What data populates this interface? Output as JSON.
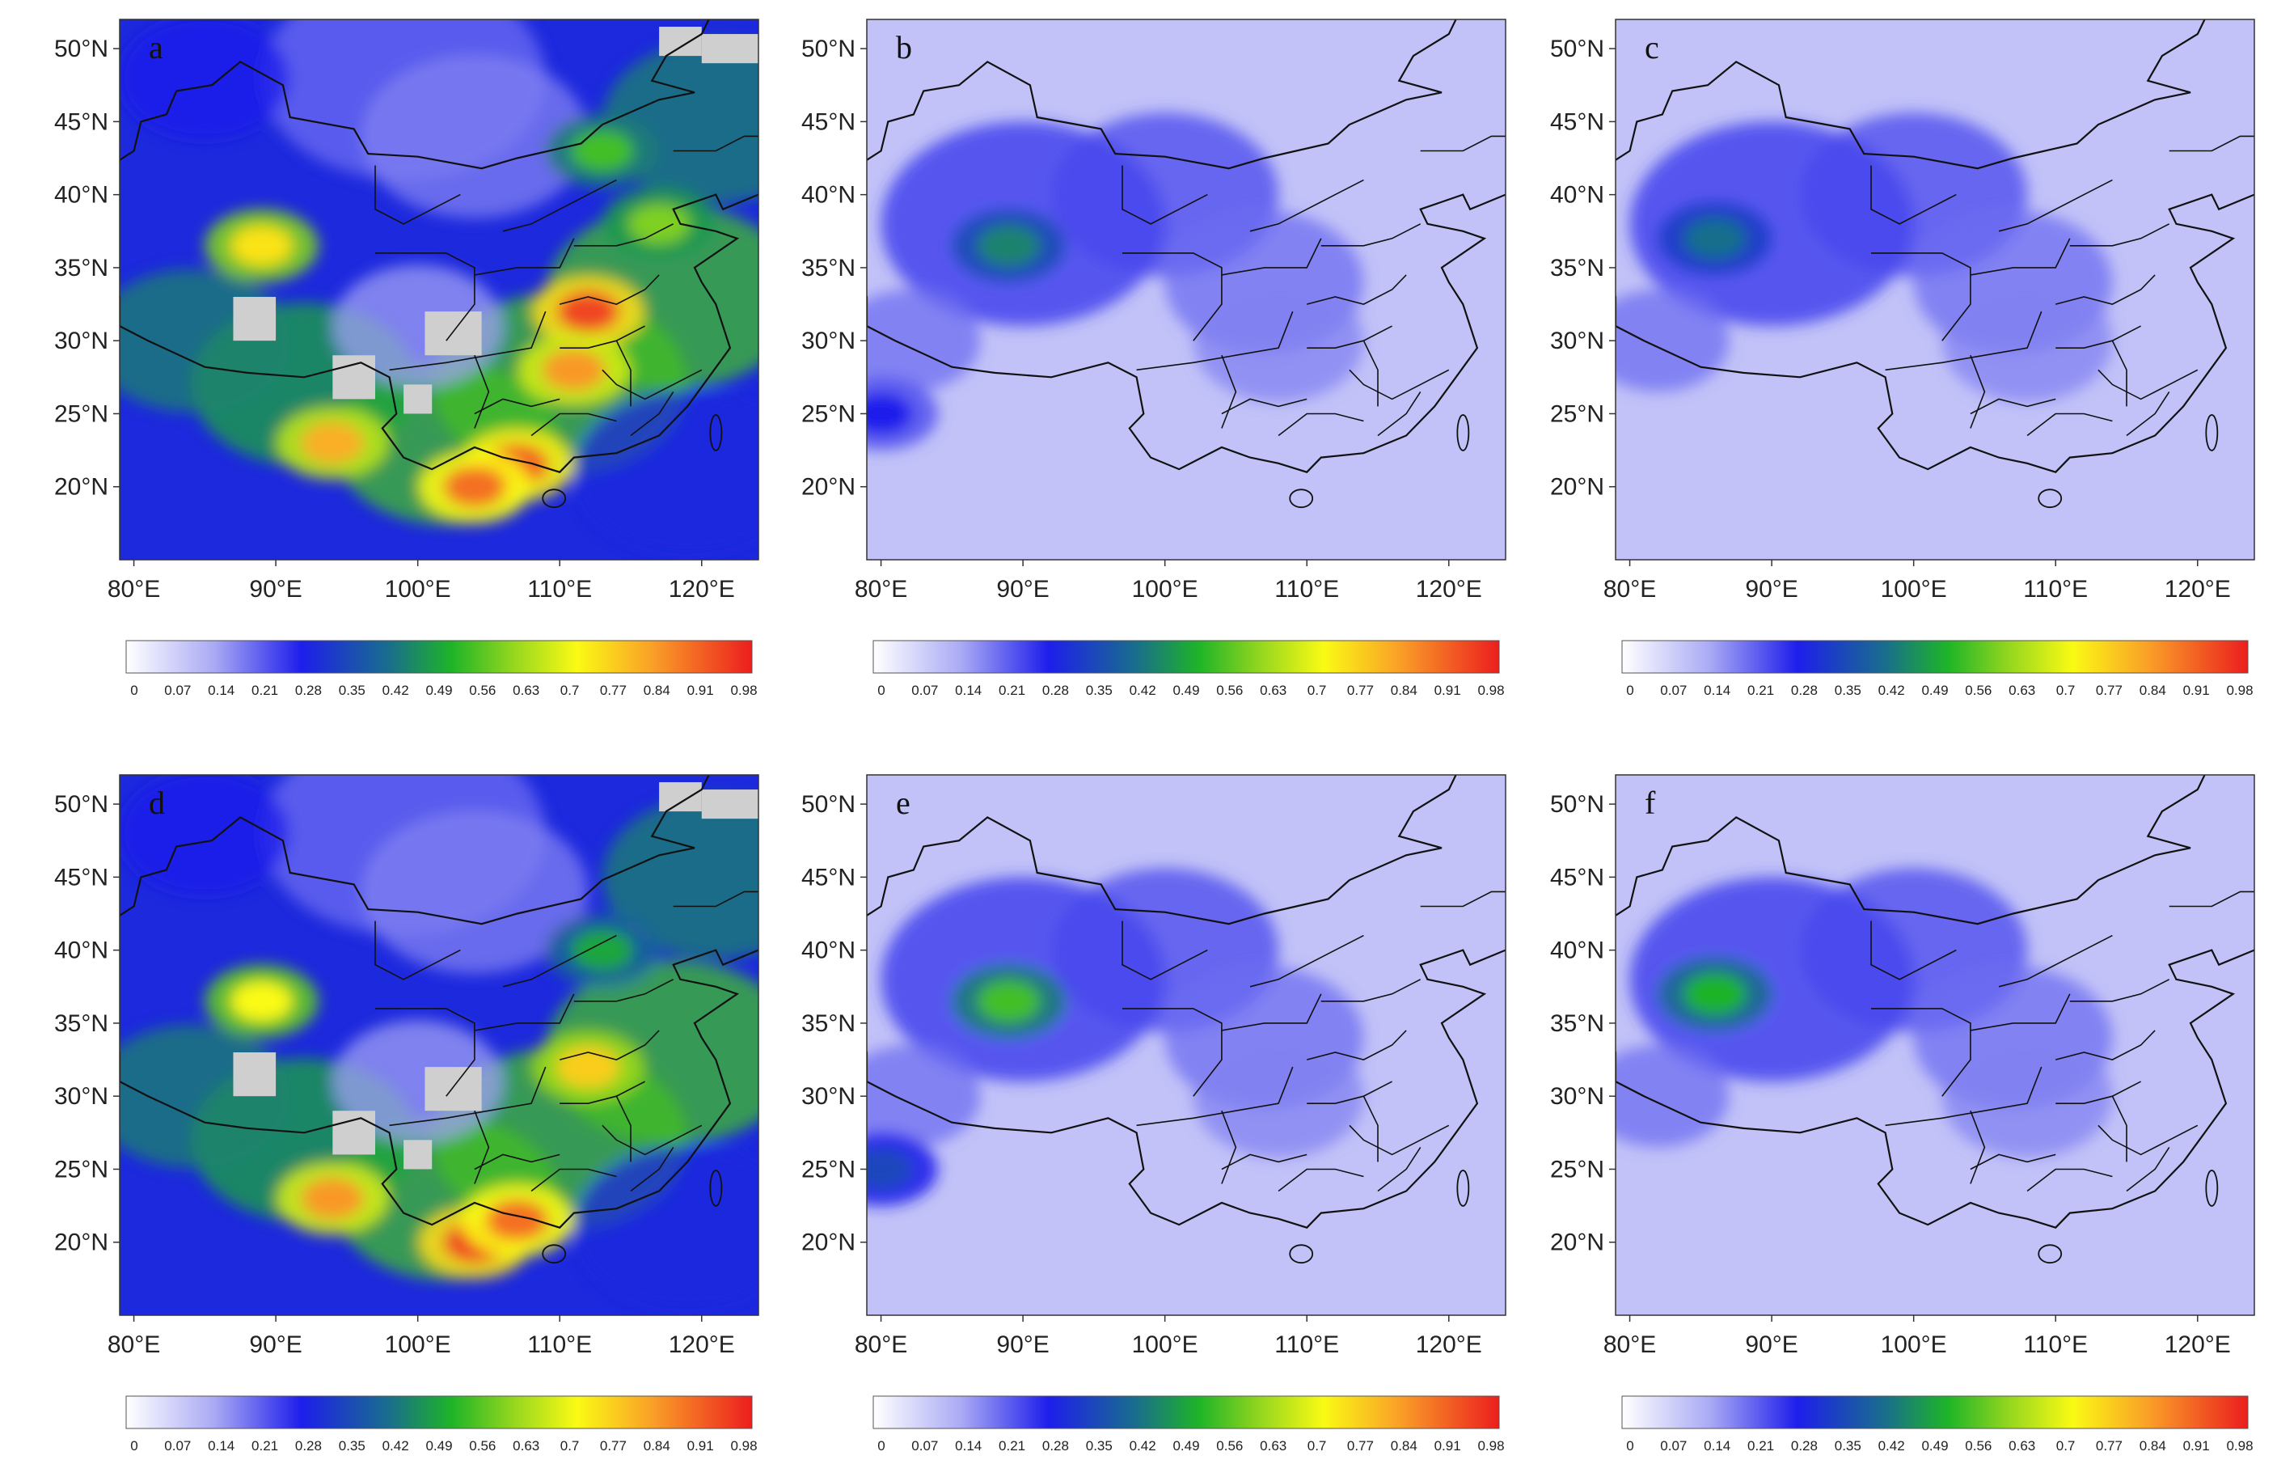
{
  "chart_data": [
    {
      "type": "heatmap",
      "panel_letter": "a",
      "x_ticks": [
        "80°E",
        "90°E",
        "100°E",
        "110°E",
        "120°E"
      ],
      "y_ticks": [
        "20°N",
        "25°N",
        "30°N",
        "35°N",
        "40°N",
        "45°N",
        "50°N"
      ],
      "x_range_deg": [
        79,
        124
      ],
      "y_range_deg": [
        15,
        52
      ],
      "colorbar_range": [
        0,
        1
      ],
      "colorbar_labels": [
        "0",
        "0.07",
        "0.14",
        "0.21",
        "0.28",
        "0.35",
        "0.42",
        "0.49",
        "0.56",
        "0.63",
        "0.7",
        "0.77",
        "0.84",
        "0.91",
        "0.98"
      ],
      "style": "observed",
      "hotspots": [
        {
          "lon": 89,
          "lat": 36.5,
          "value": 0.75
        },
        {
          "lon": 112,
          "lat": 32,
          "value": 0.95
        },
        {
          "lon": 111,
          "lat": 28,
          "value": 0.85
        },
        {
          "lon": 107,
          "lat": 21.5,
          "value": 0.92
        },
        {
          "lon": 104,
          "lat": 20,
          "value": 0.9
        },
        {
          "lon": 94,
          "lat": 23,
          "value": 0.82
        },
        {
          "lon": 113,
          "lat": 43,
          "value": 0.55
        },
        {
          "lon": 117,
          "lat": 38,
          "value": 0.6
        }
      ]
    },
    {
      "type": "heatmap",
      "panel_letter": "b",
      "x_ticks": [
        "80°E",
        "90°E",
        "100°E",
        "110°E",
        "120°E"
      ],
      "y_ticks": [
        "20°N",
        "25°N",
        "30°N",
        "35°N",
        "40°N",
        "45°N",
        "50°N"
      ],
      "x_range_deg": [
        79,
        124
      ],
      "y_range_deg": [
        15,
        52
      ],
      "colorbar_range": [
        0,
        1
      ],
      "colorbar_labels": [
        "0",
        "0.07",
        "0.14",
        "0.21",
        "0.28",
        "0.35",
        "0.42",
        "0.49",
        "0.56",
        "0.63",
        "0.7",
        "0.77",
        "0.84",
        "0.91",
        "0.98"
      ],
      "style": "model",
      "hotspots": [
        {
          "lon": 89,
          "lat": 36.5,
          "value": 0.45
        },
        {
          "lon": 80,
          "lat": 25,
          "value": 0.28
        }
      ]
    },
    {
      "type": "heatmap",
      "panel_letter": "c",
      "x_ticks": [
        "80°E",
        "90°E",
        "100°E",
        "110°E",
        "120°E"
      ],
      "y_ticks": [
        "20°N",
        "25°N",
        "30°N",
        "35°N",
        "40°N",
        "45°N",
        "50°N"
      ],
      "x_range_deg": [
        79,
        124
      ],
      "y_range_deg": [
        15,
        52
      ],
      "colorbar_range": [
        0,
        1
      ],
      "colorbar_labels": [
        "0",
        "0.07",
        "0.14",
        "0.21",
        "0.28",
        "0.35",
        "0.42",
        "0.49",
        "0.56",
        "0.63",
        "0.7",
        "0.77",
        "0.84",
        "0.91",
        "0.98"
      ],
      "style": "model",
      "hotspots": [
        {
          "lon": 86,
          "lat": 37,
          "value": 0.42
        }
      ]
    },
    {
      "type": "heatmap",
      "panel_letter": "d",
      "x_ticks": [
        "80°E",
        "90°E",
        "100°E",
        "110°E",
        "120°E"
      ],
      "y_ticks": [
        "20°N",
        "25°N",
        "30°N",
        "35°N",
        "40°N",
        "45°N",
        "50°N"
      ],
      "x_range_deg": [
        79,
        124
      ],
      "y_range_deg": [
        15,
        52
      ],
      "colorbar_range": [
        0,
        1
      ],
      "colorbar_labels": [
        "0",
        "0.07",
        "0.14",
        "0.21",
        "0.28",
        "0.35",
        "0.42",
        "0.49",
        "0.56",
        "0.63",
        "0.7",
        "0.77",
        "0.84",
        "0.91",
        "0.98"
      ],
      "style": "observed",
      "hotspots": [
        {
          "lon": 89,
          "lat": 36.5,
          "value": 0.72
        },
        {
          "lon": 112,
          "lat": 32,
          "value": 0.78
        },
        {
          "lon": 104,
          "lat": 20,
          "value": 0.95
        },
        {
          "lon": 107,
          "lat": 21.5,
          "value": 0.9
        },
        {
          "lon": 94,
          "lat": 23,
          "value": 0.85
        },
        {
          "lon": 113,
          "lat": 40,
          "value": 0.5
        }
      ]
    },
    {
      "type": "heatmap",
      "panel_letter": "e",
      "x_ticks": [
        "80°E",
        "90°E",
        "100°E",
        "110°E",
        "120°E"
      ],
      "y_ticks": [
        "20°N",
        "25°N",
        "30°N",
        "35°N",
        "40°N",
        "45°N",
        "50°N"
      ],
      "x_range_deg": [
        79,
        124
      ],
      "y_range_deg": [
        15,
        52
      ],
      "colorbar_range": [
        0,
        1
      ],
      "colorbar_labels": [
        "0",
        "0.07",
        "0.14",
        "0.21",
        "0.28",
        "0.35",
        "0.42",
        "0.49",
        "0.56",
        "0.63",
        "0.7",
        "0.77",
        "0.84",
        "0.91",
        "0.98"
      ],
      "style": "model",
      "hotspots": [
        {
          "lon": 89,
          "lat": 36.5,
          "value": 0.55
        },
        {
          "lon": 80,
          "lat": 25,
          "value": 0.35
        }
      ]
    },
    {
      "type": "heatmap",
      "panel_letter": "f",
      "x_ticks": [
        "80°E",
        "90°E",
        "100°E",
        "110°E",
        "120°E"
      ],
      "y_ticks": [
        "20°N",
        "25°N",
        "30°N",
        "35°N",
        "40°N",
        "45°N",
        "50°N"
      ],
      "x_range_deg": [
        79,
        124
      ],
      "y_range_deg": [
        15,
        52
      ],
      "colorbar_range": [
        0,
        1
      ],
      "colorbar_labels": [
        "0",
        "0.07",
        "0.14",
        "0.21",
        "0.28",
        "0.35",
        "0.42",
        "0.49",
        "0.56",
        "0.63",
        "0.7",
        "0.77",
        "0.84",
        "0.91",
        "0.98"
      ],
      "style": "model",
      "hotspots": [
        {
          "lon": 86,
          "lat": 37,
          "value": 0.52
        }
      ]
    }
  ]
}
